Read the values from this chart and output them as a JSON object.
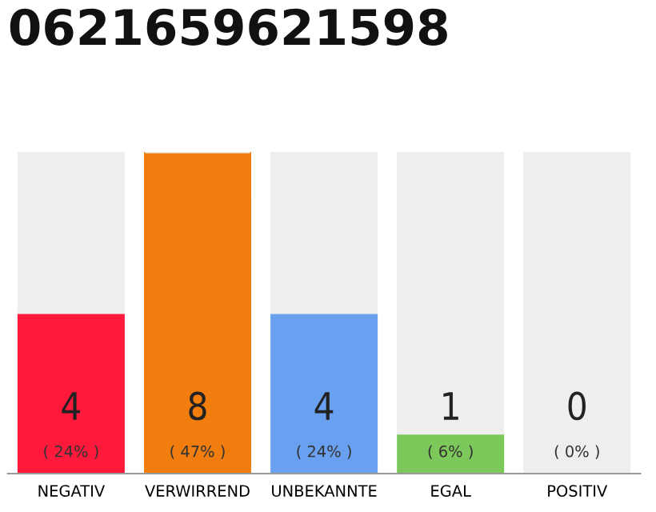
{
  "chart_data": {
    "type": "bar",
    "title": "0621659621598",
    "categories": [
      "NEGATIV",
      "VERWIRREND",
      "UNBEKANNTE",
      "EGAL",
      "POSITIV"
    ],
    "stacked": true,
    "ylim": [
      0,
      8
    ],
    "grid": false,
    "legend": false,
    "series": [
      {
        "colors": [
          "#ff1a3c",
          "#f07d0e",
          "#6aa0f0",
          "#7dc85a",
          "#eeeeee"
        ],
        "values": [
          4,
          8,
          4,
          1,
          0
        ],
        "value_labels": [
          "4\n( 24% )",
          "8\n( 47% )",
          "4\n( 24% )",
          "1\n( 6% )",
          "0\n( 0% )"
        ]
      },
      {
        "color": "#eeeeee",
        "values": [
          4,
          0,
          4,
          7,
          8
        ]
      }
    ]
  }
}
